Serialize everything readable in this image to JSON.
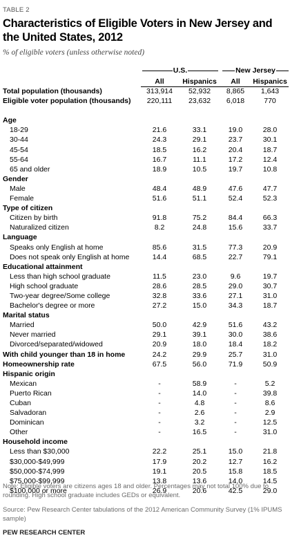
{
  "table_label": "TABLE 2",
  "title": "Characteristics of Eligible Voters in New Jersey and the United States, 2012",
  "subtitle": "% of eligible voters (unless otherwise noted)",
  "groups": {
    "us": "U.S.",
    "nj": "New Jersey"
  },
  "columns": [
    "All",
    "Hispanics",
    "All",
    "Hispanics"
  ],
  "rows": [
    {
      "label": "Total population (thousands)",
      "values": [
        "313,914",
        "52,932",
        "8,865",
        "1,643"
      ],
      "style": "bold"
    },
    {
      "label": "Eligible voter population (thousands)",
      "values": [
        "220,111",
        "23,632",
        "6,018",
        "770"
      ],
      "style": "bold"
    },
    {
      "label": "Age",
      "style": "section"
    },
    {
      "label": "18-29",
      "values": [
        "21.6",
        "33.1",
        "19.0",
        "28.0"
      ],
      "style": "indent"
    },
    {
      "label": "30-44",
      "values": [
        "24.3",
        "29.1",
        "23.7",
        "30.1"
      ],
      "style": "indent"
    },
    {
      "label": "45-54",
      "values": [
        "18.5",
        "16.2",
        "20.4",
        "18.7"
      ],
      "style": "indent"
    },
    {
      "label": "55-64",
      "values": [
        "16.7",
        "11.1",
        "17.2",
        "12.4"
      ],
      "style": "indent"
    },
    {
      "label": "65 and older",
      "values": [
        "18.9",
        "10.5",
        "19.7",
        "10.8"
      ],
      "style": "indent"
    },
    {
      "label": "Gender",
      "style": "section"
    },
    {
      "label": "Male",
      "values": [
        "48.4",
        "48.9",
        "47.6",
        "47.7"
      ],
      "style": "indent"
    },
    {
      "label": "Female",
      "values": [
        "51.6",
        "51.1",
        "52.4",
        "52.3"
      ],
      "style": "indent"
    },
    {
      "label": "Type of citizen",
      "style": "section"
    },
    {
      "label": "Citizen by birth",
      "values": [
        "91.8",
        "75.2",
        "84.4",
        "66.3"
      ],
      "style": "indent"
    },
    {
      "label": "Naturalized citizen",
      "values": [
        "8.2",
        "24.8",
        "15.6",
        "33.7"
      ],
      "style": "indent"
    },
    {
      "label": "Language",
      "style": "section"
    },
    {
      "label": "Speaks only English at home",
      "values": [
        "85.6",
        "31.5",
        "77.3",
        "20.9"
      ],
      "style": "indent"
    },
    {
      "label": "Does not speak only English at home",
      "values": [
        "14.4",
        "68.5",
        "22.7",
        "79.1"
      ],
      "style": "indent"
    },
    {
      "label": "Educational attainment",
      "style": "section"
    },
    {
      "label": "Less than high school graduate",
      "values": [
        "11.5",
        "23.0",
        "9.6",
        "19.7"
      ],
      "style": "indent"
    },
    {
      "label": "High school graduate",
      "values": [
        "28.6",
        "28.5",
        "29.0",
        "30.7"
      ],
      "style": "indent"
    },
    {
      "label": "Two-year degree/Some college",
      "values": [
        "32.8",
        "33.6",
        "27.1",
        "31.0"
      ],
      "style": "indent"
    },
    {
      "label": "Bachelor's degree or more",
      "values": [
        "27.2",
        "15.0",
        "34.3",
        "18.7"
      ],
      "style": "indent"
    },
    {
      "label": "Marital status",
      "style": "section"
    },
    {
      "label": "Married",
      "values": [
        "50.0",
        "42.9",
        "51.6",
        "43.2"
      ],
      "style": "indent"
    },
    {
      "label": "Never married",
      "values": [
        "29.1",
        "39.1",
        "30.0",
        "38.6"
      ],
      "style": "indent"
    },
    {
      "label": "Divorced/separated/widowed",
      "values": [
        "20.9",
        "18.0",
        "18.4",
        "18.2"
      ],
      "style": "indent"
    },
    {
      "label": "With child younger than 18 in home",
      "values": [
        "24.2",
        "29.9",
        "25.7",
        "31.0"
      ],
      "style": "bold"
    },
    {
      "label": "Homeownership rate",
      "values": [
        "67.5",
        "56.0",
        "71.9",
        "50.9"
      ],
      "style": "bold"
    },
    {
      "label": "Hispanic origin",
      "style": "section"
    },
    {
      "label": "Mexican",
      "values": [
        "-",
        "58.9",
        "-",
        "5.2"
      ],
      "style": "indent"
    },
    {
      "label": "Puerto Rican",
      "values": [
        "-",
        "14.0",
        "-",
        "39.8"
      ],
      "style": "indent"
    },
    {
      "label": "Cuban",
      "values": [
        "-",
        "4.8",
        "-",
        "8.6"
      ],
      "style": "indent"
    },
    {
      "label": "Salvadoran",
      "values": [
        "-",
        "2.6",
        "-",
        "2.9"
      ],
      "style": "indent"
    },
    {
      "label": "Dominican",
      "values": [
        "-",
        "3.2",
        "-",
        "12.5"
      ],
      "style": "indent"
    },
    {
      "label": "Other",
      "values": [
        "-",
        "16.5",
        "-",
        "31.0"
      ],
      "style": "indent"
    },
    {
      "label": "Household income",
      "style": "section"
    },
    {
      "label": "Less than $30,000",
      "values": [
        "22.2",
        "25.1",
        "15.0",
        "21.8"
      ],
      "style": "indent"
    },
    {
      "label": "$30,000-$49,999",
      "values": [
        "17.9",
        "20.2",
        "12.7",
        "16.2"
      ],
      "style": "indent"
    },
    {
      "label": "$50,000-$74,999",
      "values": [
        "19.1",
        "20.5",
        "15.8",
        "18.5"
      ],
      "style": "indent"
    },
    {
      "label": "$75,000-$99,999",
      "values": [
        "13.8",
        "13.6",
        "14.0",
        "14.5"
      ],
      "style": "indent"
    },
    {
      "label": "$100,000 or more",
      "values": [
        "26.9",
        "20.6",
        "42.5",
        "29.0"
      ],
      "style": "indent"
    }
  ],
  "note": "Note: Eligible voters are citizens ages 18 and older. Percentages may not total 100% due to rounding. High school graduate includes GEDs or equivalent.",
  "source": "Source: Pew Research Center tabulations of the 2012 American Community Survey (1% IPUMS sample)",
  "brand": "PEW RESEARCH CENTER"
}
